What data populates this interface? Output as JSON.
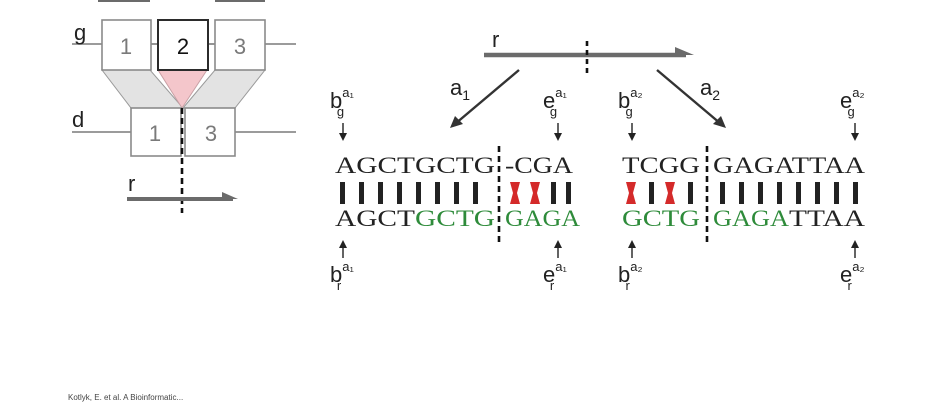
{
  "colors": {
    "line": "#7a7a7a",
    "thick": "#6b6b6b",
    "box_border": "#8a8a8a",
    "box_border_dark": "#2b2b2b",
    "trapezoid": "#e3e3e3",
    "triangle": "#f4c6cb",
    "green": "#2e8b3a",
    "mismatch": "#d42a2a",
    "text": "#222222"
  },
  "left_panel": {
    "g_label": "g",
    "d_label": "d",
    "r_label": "r",
    "g_boxes": [
      "1",
      "2",
      "3"
    ],
    "d_boxes": [
      "1",
      "3"
    ]
  },
  "right_panel": {
    "r_label": "r",
    "arrow_left": {
      "base": "a",
      "sub": "1"
    },
    "arrow_right": {
      "base": "a",
      "sub": "2"
    },
    "markers": {
      "b_g_a1": {
        "base": "b",
        "sup": "a₁",
        "sub": "g"
      },
      "e_g_a1": {
        "base": "e",
        "sup": "a₁",
        "sub": "g"
      },
      "b_g_a2": {
        "base": "b",
        "sup": "a₂",
        "sub": "g"
      },
      "e_g_a2": {
        "base": "e",
        "sup": "a₂",
        "sub": "g"
      },
      "b_r_a1": {
        "base": "b",
        "sup": "a₁",
        "sub": "r"
      },
      "e_r_a1": {
        "base": "e",
        "sup": "a₁",
        "sub": "r"
      },
      "b_r_a2": {
        "base": "b",
        "sup": "a₂",
        "sub": "r"
      },
      "e_r_a2": {
        "base": "e",
        "sup": "a₂",
        "sub": "r"
      }
    },
    "alignment1": {
      "top": "AGCTGCTG",
      "top_after_cut": "-CGA",
      "bottom_black": "AGCT",
      "bottom_green": "GCTG",
      "bottom_after_cut": "GAGA"
    },
    "alignment2": {
      "top": "TCGG",
      "top_after_cut": "GAGATTAA",
      "bottom_green": "GCTG",
      "bottom_after_green": "GAGA",
      "bottom_black": "TTAA"
    }
  },
  "footer": "Kotlyk, E. et al. A Bioinformatic..."
}
